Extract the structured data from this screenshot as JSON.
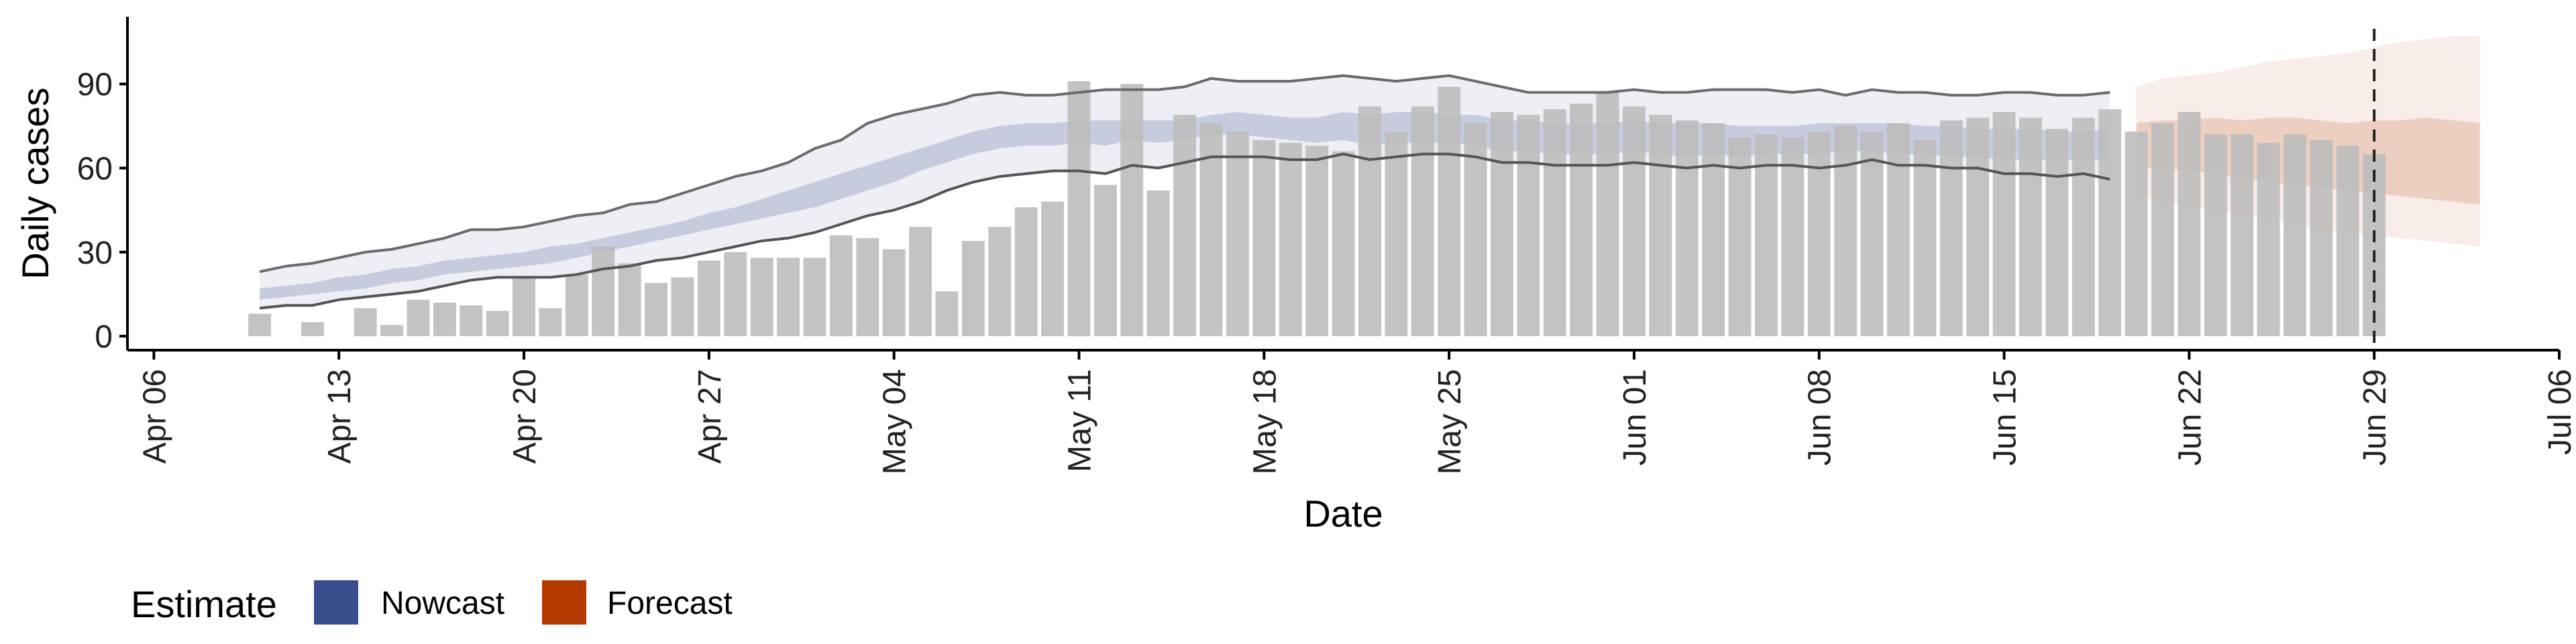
{
  "chart_data": {
    "type": "bar",
    "xlabel": "Date",
    "ylabel": "Daily cases",
    "ylim": [
      -5,
      114
    ],
    "yticks": [
      0,
      30,
      60,
      90
    ],
    "xlim": [
      "2020-04-05",
      "2020-07-06"
    ],
    "xticks": [
      {
        "date": "2020-04-06",
        "label": "Apr 06"
      },
      {
        "date": "2020-04-13",
        "label": "Apr 13"
      },
      {
        "date": "2020-04-20",
        "label": "Apr 20"
      },
      {
        "date": "2020-04-27",
        "label": "Apr 27"
      },
      {
        "date": "2020-05-04",
        "label": "May 04"
      },
      {
        "date": "2020-05-11",
        "label": "May 11"
      },
      {
        "date": "2020-05-18",
        "label": "May 18"
      },
      {
        "date": "2020-05-25",
        "label": "May 25"
      },
      {
        "date": "2020-06-01",
        "label": "Jun 01"
      },
      {
        "date": "2020-06-08",
        "label": "Jun 08"
      },
      {
        "date": "2020-06-15",
        "label": "Jun 15"
      },
      {
        "date": "2020-06-22",
        "label": "Jun 22"
      },
      {
        "date": "2020-06-29",
        "label": "Jun 29"
      },
      {
        "date": "2020-07-06",
        "label": "Jul 06"
      }
    ],
    "grid": false,
    "reference_line_date": "2020-06-29",
    "bars": {
      "start_date": "2020-04-10",
      "color": "#bdbdbd",
      "values": [
        8,
        0,
        5,
        0,
        10,
        4,
        13,
        12,
        11,
        9,
        21,
        10,
        22,
        32,
        26,
        19,
        21,
        27,
        30,
        28,
        28,
        28,
        36,
        35,
        31,
        39,
        16,
        34,
        39,
        46,
        48,
        91,
        54,
        90,
        52,
        79,
        76,
        73,
        70,
        69,
        68,
        66,
        82,
        73,
        82,
        89,
        76,
        80,
        79,
        81,
        83,
        87,
        82,
        79,
        77,
        76,
        71,
        72,
        71,
        73,
        75,
        73,
        76,
        70,
        77,
        78,
        80,
        78,
        74,
        78,
        81,
        73,
        76,
        80,
        72,
        72,
        69,
        72,
        70,
        68,
        65
      ]
    },
    "nowcast": {
      "start_date": "2020-04-10",
      "color": "#3a4d8c",
      "outer_lower": [
        10,
        11,
        11,
        13,
        14,
        15,
        16,
        18,
        20,
        21,
        21,
        21,
        22,
        24,
        25,
        27,
        28,
        30,
        32,
        34,
        35,
        37,
        40,
        43,
        45,
        48,
        52,
        55,
        57,
        58,
        59,
        59,
        58,
        61,
        60,
        62,
        64,
        64,
        64,
        63,
        63,
        65,
        63,
        64,
        65,
        65,
        64,
        62,
        62,
        61,
        61,
        61,
        62,
        61,
        60,
        61,
        60,
        61,
        61,
        60,
        61,
        63,
        61,
        61,
        60,
        60,
        58,
        58,
        57,
        58,
        56
      ],
      "inner_lower": [
        13,
        14,
        15,
        16,
        17,
        19,
        20,
        22,
        23,
        24,
        25,
        26,
        28,
        30,
        32,
        34,
        36,
        38,
        40,
        42,
        44,
        46,
        49,
        52,
        55,
        59,
        62,
        65,
        67,
        68,
        68,
        69,
        68,
        70,
        69,
        70,
        72,
        72,
        71,
        70,
        69,
        70,
        68,
        69,
        69,
        69,
        68,
        66,
        66,
        65,
        65,
        65,
        66,
        65,
        64,
        65,
        64,
        65,
        65,
        65,
        66,
        66,
        65,
        65,
        64,
        64,
        63,
        63,
        63,
        63,
        63
      ],
      "inner_upper": [
        17,
        18,
        19,
        21,
        22,
        24,
        25,
        27,
        28,
        29,
        30,
        32,
        33,
        35,
        37,
        39,
        41,
        44,
        46,
        49,
        52,
        55,
        58,
        61,
        64,
        67,
        70,
        73,
        75,
        76,
        76,
        77,
        77,
        77,
        77,
        77,
        79,
        80,
        79,
        78,
        78,
        80,
        79,
        80,
        80,
        79,
        79,
        77,
        77,
        76,
        76,
        76,
        77,
        76,
        76,
        76,
        75,
        75,
        75,
        76,
        76,
        76,
        76,
        75,
        75,
        74,
        74,
        74,
        73,
        73,
        74
      ],
      "outer_upper": [
        23,
        25,
        26,
        28,
        30,
        31,
        33,
        35,
        38,
        38,
        39,
        41,
        43,
        44,
        47,
        48,
        51,
        54,
        57,
        59,
        62,
        67,
        70,
        76,
        79,
        81,
        83,
        86,
        87,
        86,
        86,
        87,
        88,
        88,
        88,
        89,
        92,
        91,
        91,
        91,
        92,
        93,
        92,
        91,
        92,
        93,
        91,
        89,
        87,
        87,
        87,
        87,
        88,
        87,
        87,
        88,
        88,
        88,
        87,
        88,
        86,
        88,
        87,
        87,
        86,
        86,
        87,
        87,
        86,
        86,
        87
      ]
    },
    "forecast": {
      "start_date": "2020-06-20",
      "color": "#b33a00",
      "outer_lower": [
        50,
        48,
        46,
        45,
        43,
        42,
        40,
        38,
        37,
        36,
        35,
        34,
        33,
        32
      ],
      "inner_lower": [
        60,
        60,
        59,
        58,
        56,
        55,
        54,
        53,
        52,
        51,
        50,
        49,
        48,
        47
      ],
      "inner_upper": [
        76,
        77,
        77,
        78,
        77,
        78,
        78,
        77,
        76,
        77,
        77,
        78,
        77,
        76
      ],
      "outer_upper": [
        89,
        92,
        93,
        94,
        96,
        98,
        99,
        100,
        101,
        103,
        105,
        106,
        107,
        107
      ]
    },
    "legend": {
      "position": "bottom-left",
      "title": "Estimate",
      "items": [
        {
          "label": "Nowcast",
          "color": "#3a4d8c"
        },
        {
          "label": "Forecast",
          "color": "#b33a00"
        }
      ]
    }
  }
}
